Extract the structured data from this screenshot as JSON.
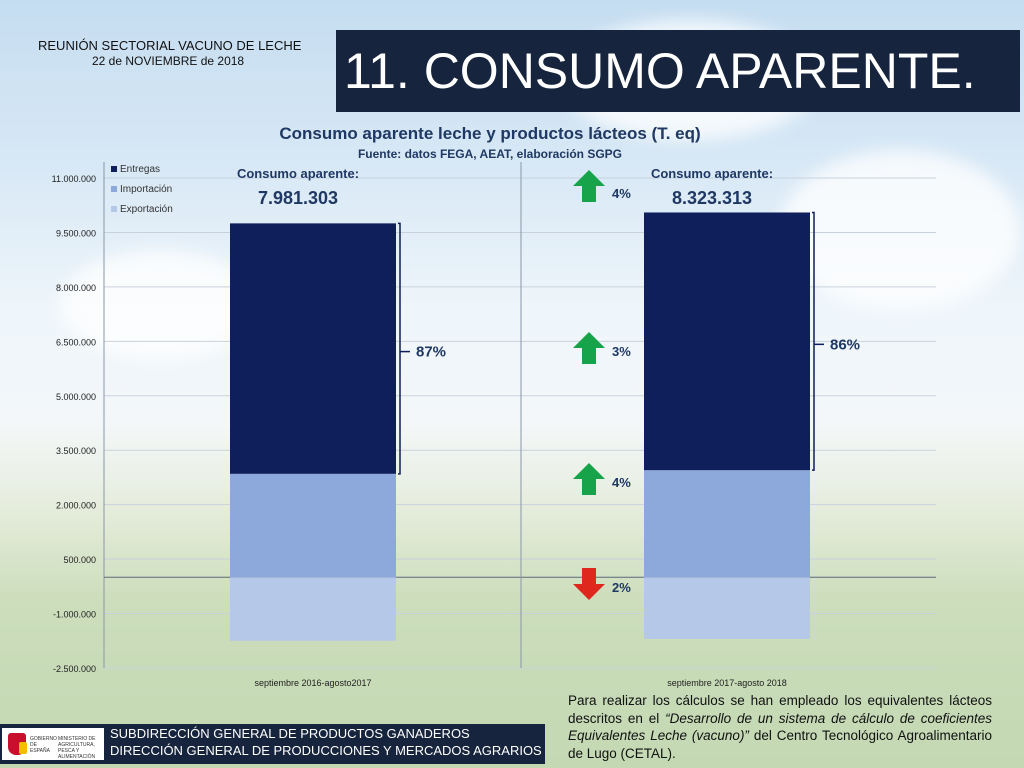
{
  "header": {
    "event": "REUNIÓN SECTORIAL VACUNO DE LECHE",
    "date": "22 de NOVIEMBRE de 2018",
    "slide_title": "11. CONSUMO APARENTE."
  },
  "chart_data": {
    "type": "bar",
    "stacked": true,
    "title": "Consumo aparente leche y productos lácteos (T. eq)",
    "subtitle": "Fuente: datos FEGA, AEAT, elaboración SGPG",
    "categories": [
      "septiembre 2016-agosto2017",
      "septiembre 2017-agosto 2018"
    ],
    "series": [
      {
        "name": "Exportación",
        "values": [
          -1750000,
          -1700000
        ],
        "color": "#b6c8e8"
      },
      {
        "name": "Importación",
        "values": [
          2850000,
          2950000
        ],
        "color": "#8da9dc"
      },
      {
        "name": "Entregas",
        "values": [
          6900000,
          7100000
        ],
        "color": "#0e1f5c"
      }
    ],
    "ylim": [
      -2500000,
      11000000
    ],
    "yticks": [
      {
        "value": 11000000,
        "label": "11.000.000"
      },
      {
        "value": 9500000,
        "label": "9.500.000"
      },
      {
        "value": 8000000,
        "label": "8.000.000"
      },
      {
        "value": 6500000,
        "label": "6.500.000"
      },
      {
        "value": 5000000,
        "label": "5.000.000"
      },
      {
        "value": 3500000,
        "label": "3.500.000"
      },
      {
        "value": 2000000,
        "label": "2.000.000"
      },
      {
        "value": 500000,
        "label": "500.000"
      },
      {
        "value": -1000000,
        "label": "-1.000.000"
      },
      {
        "value": -2500000,
        "label": "-2.500.000"
      }
    ],
    "grid": true,
    "legend_position": "top-left",
    "consumo_label": "Consumo aparente:",
    "consumo_values": [
      "7.981.303",
      "8.323.313"
    ],
    "share_labels": [
      "87%",
      "86%"
    ],
    "changes": [
      {
        "label": "4%",
        "direction": "up",
        "series": "total"
      },
      {
        "label": "3%",
        "direction": "up",
        "series": "Entregas"
      },
      {
        "label": "4%",
        "direction": "up",
        "series": "Importación"
      },
      {
        "label": "2%",
        "direction": "down",
        "series": "Exportación"
      }
    ],
    "up_color": "#17a34a",
    "down_color": "#e0271e"
  },
  "note": {
    "line_a": "Para realizar los cálculos se han empleado los equivalentes lácteos descritos en el ",
    "line_b": "“Desarrollo de un sistema de cálculo de coeficientes Equivalentes Leche (vacuno)”",
    "line_c": " del Centro Tecnológico Agroalimentario de Lugo (CETAL)."
  },
  "footer": {
    "line1": "SUBDIRECCIÓN GENERAL DE PRODUCTOS GANADEROS",
    "line2": "DIRECCIÓN GENERAL DE PRODUCCIONES Y MERCADOS AGRARIOS",
    "logo_left": "GOBIERNO DE ESPAÑA",
    "logo_right": "MINISTERIO DE AGRICULTURA, PESCA Y ALIMENTACIÓN"
  }
}
